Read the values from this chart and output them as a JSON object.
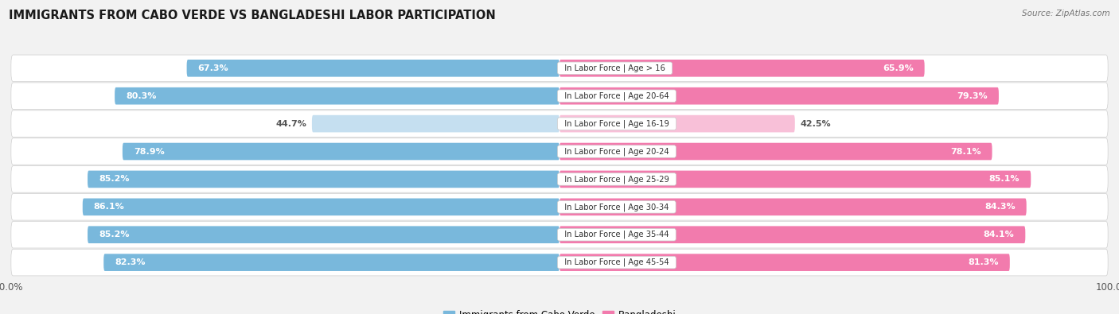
{
  "title": "IMMIGRANTS FROM CABO VERDE VS BANGLADESHI LABOR PARTICIPATION",
  "source": "Source: ZipAtlas.com",
  "categories": [
    "In Labor Force | Age > 16",
    "In Labor Force | Age 20-64",
    "In Labor Force | Age 16-19",
    "In Labor Force | Age 20-24",
    "In Labor Force | Age 25-29",
    "In Labor Force | Age 30-34",
    "In Labor Force | Age 35-44",
    "In Labor Force | Age 45-54"
  ],
  "cabo_verde_values": [
    67.3,
    80.3,
    44.7,
    78.9,
    85.2,
    86.1,
    85.2,
    82.3
  ],
  "bangladeshi_values": [
    65.9,
    79.3,
    42.5,
    78.1,
    85.1,
    84.3,
    84.1,
    81.3
  ],
  "cabo_verde_color": "#79B8DC",
  "cabo_verde_color_light": "#C5DFF0",
  "bangladeshi_color": "#F27BAD",
  "bangladeshi_color_light": "#F8C0D8",
  "background_color": "#f2f2f2",
  "row_bg_light": "#f9f9f9",
  "row_bg_dark": "#ebebeb",
  "xlim": 100.0,
  "bar_height": 0.62,
  "legend_cabo": "Immigrants from Cabo Verde",
  "legend_bangla": "Bangladeshi"
}
